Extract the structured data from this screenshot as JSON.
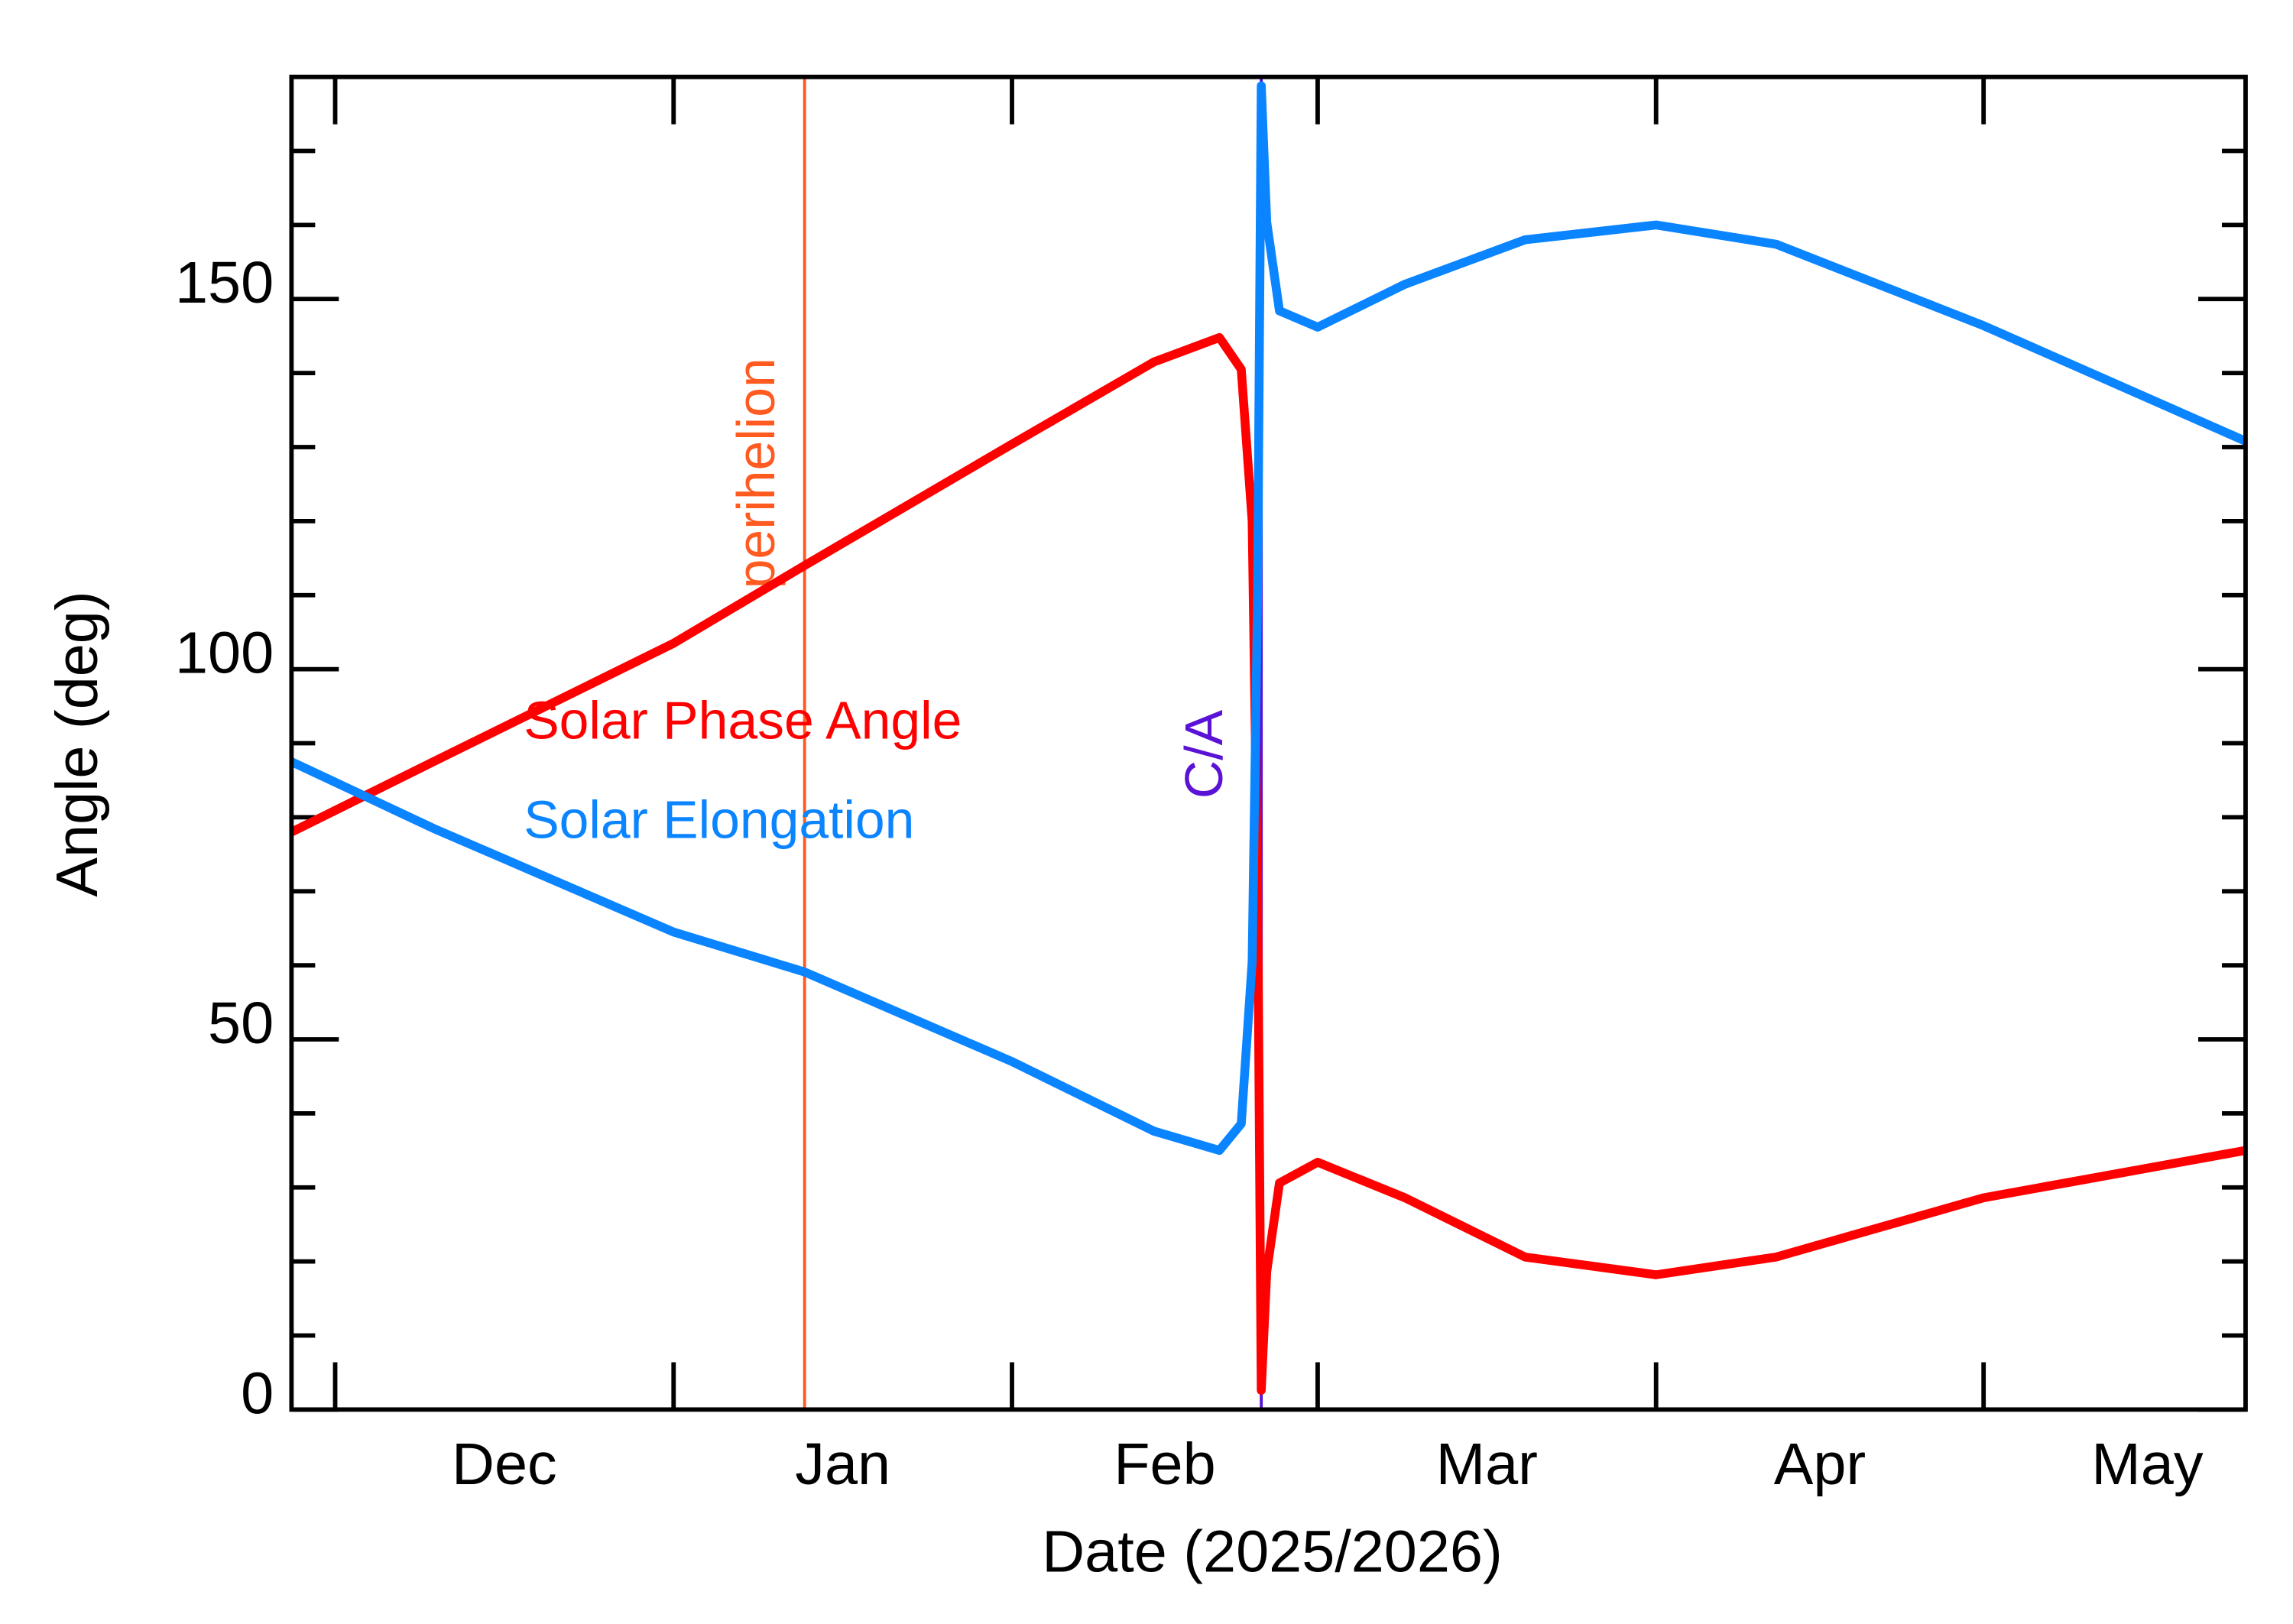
{
  "chart_data": {
    "type": "line",
    "xlabel": "Date (2025/2026)",
    "ylabel": "Angle (deg)",
    "x": [
      "2025-11-27",
      "2025-12-10",
      "2026-01-01",
      "2026-01-13",
      "2026-02-01",
      "2026-02-14",
      "2026-02-20",
      "2026-02-22",
      "2026-02-23T00:00",
      "2026-02-23T12:00",
      "2026-02-23T20:00",
      "2026-02-24T08:00",
      "2026-02-25T12:00",
      "2026-03-01",
      "2026-03-09",
      "2026-03-20",
      "2026-04-01",
      "2026-04-12",
      "2026-05-01",
      "2026-05-25"
    ],
    "series": [
      {
        "name": "Solar Phase Angle",
        "color": "#ff0000",
        "values": [
          78,
          87.5,
          103.5,
          114,
          130.4,
          141.5,
          144.8,
          140.5,
          120,
          70,
          2.6,
          18.6,
          30.6,
          33.4,
          28.6,
          20.6,
          18.2,
          20.6,
          28.6,
          35
        ]
      },
      {
        "name": "Solar Elongation",
        "color": "#0a84ff",
        "values": [
          87.5,
          78.5,
          64.5,
          59.1,
          47,
          37.6,
          35,
          38.6,
          60.5,
          110.5,
          178.8,
          160.4,
          148.4,
          146.2,
          152,
          158,
          160,
          157.4,
          146.4,
          130.8
        ]
      }
    ],
    "events": [
      {
        "label": "perihelion",
        "x": "2026-01-13",
        "color": "#ff5a1f"
      },
      {
        "label": "C/A",
        "x": "2026-02-23T20:00",
        "color": "#5a12d6"
      }
    ],
    "xlim": [
      "2025-11-27",
      "2026-05-25"
    ],
    "xticks": [
      {
        "value": "2025-12-01",
        "label": "Dec"
      },
      {
        "value": "2026-01-01",
        "label": "Jan"
      },
      {
        "value": "2026-02-01",
        "label": "Feb"
      },
      {
        "value": "2026-03-01",
        "label": "Mar"
      },
      {
        "value": "2026-04-01",
        "label": "Apr"
      },
      {
        "value": "2026-05-01",
        "label": "May"
      }
    ],
    "ylim": [
      0,
      180
    ],
    "yticks": [
      0,
      50,
      100,
      150
    ],
    "yminor": [
      10,
      20,
      30,
      40,
      60,
      70,
      80,
      90,
      110,
      120,
      130,
      140,
      160,
      170
    ]
  }
}
